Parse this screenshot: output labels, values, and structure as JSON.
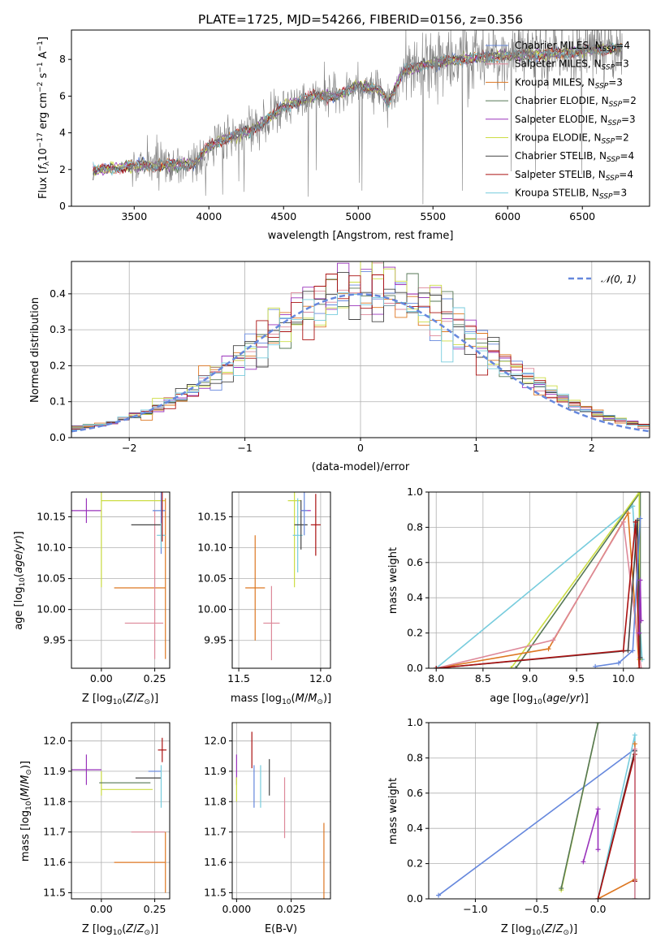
{
  "chart_data": [
    {
      "id": "spectrum",
      "type": "line",
      "title": "PLATE=1725, MJD=54266, FIBERID=0156, z=0.356",
      "xlabel": "wavelength [Angstrom, rest frame]",
      "ylabel": "Flux [f_λ10^-17 erg cm^-2 s^-1 A^-1]",
      "xlim": [
        3080,
        6950
      ],
      "ylim": [
        0,
        9.6
      ],
      "xticks": [
        3500,
        4000,
        4500,
        5000,
        5500,
        6000,
        6500
      ],
      "yticks": [
        0,
        2,
        4,
        6,
        8
      ],
      "legend_position": "upper-right",
      "legend": [
        {
          "name": "Chabrier MILES, N_SSP=4",
          "color": "#6688dd"
        },
        {
          "name": "Salpeter MILES, N_SSP=3",
          "color": "#dd8899"
        },
        {
          "name": "Kroupa MILES, N_SSP=3",
          "color": "#dd7722"
        },
        {
          "name": "Chabrier ELODIE, N_SSP=2",
          "color": "#557755"
        },
        {
          "name": "Salpeter ELODIE, N_SSP=3",
          "color": "#9933bb"
        },
        {
          "name": "Kroupa ELODIE, N_SSP=2",
          "color": "#ccdd44"
        },
        {
          "name": "Chabrier STELIB, N_SSP=4",
          "color": "#444444"
        },
        {
          "name": "Salpeter STELIB, N_SSP=4",
          "color": "#aa1111"
        },
        {
          "name": "Kroupa STELIB, N_SSP=3",
          "color": "#77ccdd"
        }
      ],
      "data_color": "#808080",
      "continuum_anchors": [
        [
          3200,
          1.9
        ],
        [
          3500,
          2.2
        ],
        [
          3900,
          2.3
        ],
        [
          4000,
          3.3
        ],
        [
          4150,
          3.8
        ],
        [
          4300,
          4.2
        ],
        [
          4500,
          5.4
        ],
        [
          4700,
          6.0
        ],
        [
          4850,
          6.0
        ],
        [
          5000,
          6.6
        ],
        [
          5150,
          6.3
        ],
        [
          5200,
          5.6
        ],
        [
          5300,
          7.4
        ],
        [
          5500,
          7.8
        ],
        [
          5800,
          8.1
        ],
        [
          6000,
          8.2
        ],
        [
          6300,
          8.3
        ],
        [
          6700,
          8.6
        ]
      ]
    },
    {
      "id": "residuals",
      "type": "histogram",
      "xlabel": "(data-model)/error",
      "ylabel": "Normed distribution",
      "xlim": [
        -2.5,
        2.5
      ],
      "ylim": [
        0,
        0.49
      ],
      "xticks": [
        -2,
        -1,
        0,
        1,
        2
      ],
      "yticks": [
        0.0,
        0.1,
        0.2,
        0.3,
        0.4
      ],
      "grid": true,
      "legend": [
        {
          "name": "N(0, 1)",
          "style": "dashed",
          "color": "#6688dd"
        }
      ],
      "series_colors": [
        "#6688dd",
        "#dd8899",
        "#dd7722",
        "#557755",
        "#9933bb",
        "#ccdd44",
        "#444444",
        "#aa1111",
        "#77ccdd"
      ],
      "bin_width": 0.1
    },
    {
      "id": "age_vs_Z",
      "type": "scatter",
      "xlabel": "Z [log10(Z/Z☉)]",
      "ylabel": "age  [log10(age/yr)]",
      "xlim": [
        -0.14,
        0.32
      ],
      "ylim": [
        9.905,
        10.19
      ],
      "xticks": [
        0.0,
        0.25
      ],
      "yticks": [
        9.95,
        10.0,
        10.05,
        10.1,
        10.15
      ],
      "grid": true,
      "points": [
        {
          "x": -0.07,
          "y": 10.16,
          "xerr": 0.07,
          "yerr": 0.02,
          "color": "#9933bb"
        },
        {
          "x": 0.0,
          "y": 10.176,
          "xerr": 0.0,
          "yerr": 0.14,
          "color": "#ccdd44"
        },
        {
          "x": 0.15,
          "y": 10.176,
          "xerr": 0.15,
          "yerr": 0.0,
          "color": "#ccdd44"
        },
        {
          "x": 0.18,
          "y": 10.035,
          "xerr": 0.12,
          "yerr": 0.0,
          "color": "#dd7722"
        },
        {
          "x": 0.3,
          "y": 10.05,
          "xerr": 0.0,
          "yerr": 0.13,
          "color": "#dd7722"
        },
        {
          "x": 0.2,
          "y": 9.978,
          "xerr": 0.09,
          "yerr": 0.0,
          "color": "#dd8899"
        },
        {
          "x": 0.25,
          "y": 10.04,
          "xerr": 0.0,
          "yerr": 0.12,
          "color": "#dd8899"
        },
        {
          "x": 0.21,
          "y": 10.137,
          "xerr": 0.07,
          "yerr": 0.0,
          "color": "#444444"
        },
        {
          "x": 0.27,
          "y": 10.16,
          "xerr": 0.03,
          "yerr": 0.0,
          "color": "#6688dd"
        },
        {
          "x": 0.28,
          "y": 10.14,
          "xerr": 0.0,
          "yerr": 0.05,
          "color": "#6688dd"
        },
        {
          "x": 0.28,
          "y": 10.12,
          "xerr": 0.02,
          "yerr": 0.02,
          "color": "#77ccdd"
        },
        {
          "x": 0.285,
          "y": 10.15,
          "xerr": 0.0,
          "yerr": 0.04,
          "color": "#aa1111"
        }
      ]
    },
    {
      "id": "age_vs_mass",
      "type": "scatter",
      "xlabel": "mass [log10(M/M☉)]",
      "ylabel": "",
      "xlim": [
        11.46,
        12.06
      ],
      "ylim": [
        9.905,
        10.19
      ],
      "xticks": [
        11.5,
        12.0
      ],
      "yticks": [
        9.95,
        10.0,
        10.05,
        10.1,
        10.15
      ],
      "grid": true,
      "points": [
        {
          "x": 11.6,
          "y": 10.035,
          "xerr": 0.06,
          "yerr": 0.085,
          "color": "#dd7722"
        },
        {
          "x": 11.7,
          "y": 9.978,
          "xerr": 0.05,
          "yerr": 0.06,
          "color": "#dd8899"
        },
        {
          "x": 11.84,
          "y": 10.176,
          "xerr": 0.04,
          "yerr": 0.14,
          "color": "#ccdd44"
        },
        {
          "x": 11.86,
          "y": 10.12,
          "xerr": 0.03,
          "yerr": 0.06,
          "color": "#77ccdd"
        },
        {
          "x": 11.88,
          "y": 10.137,
          "xerr": 0.04,
          "yerr": 0.04,
          "color": "#444444"
        },
        {
          "x": 11.91,
          "y": 10.16,
          "xerr": 0.03,
          "yerr": 0.0,
          "color": "#9933bb"
        },
        {
          "x": 11.9,
          "y": 10.16,
          "xerr": 0.02,
          "yerr": 0.04,
          "color": "#6688dd"
        },
        {
          "x": 11.97,
          "y": 10.137,
          "xerr": 0.03,
          "yerr": 0.05,
          "color": "#aa1111"
        }
      ]
    },
    {
      "id": "cumulative_age",
      "type": "line",
      "xlabel": "age  [log10(age/yr)]",
      "ylabel": "mass weight",
      "xlim": [
        7.92,
        10.28
      ],
      "ylim": [
        0,
        1.0
      ],
      "xticks": [
        8.0,
        8.5,
        9.0,
        9.5,
        10.0
      ],
      "yticks": [
        0.0,
        0.2,
        0.4,
        0.6,
        0.8,
        1.0
      ],
      "grid": true,
      "series": [
        {
          "color": "#77ccdd",
          "points": [
            [
              8.0,
              0.0
            ],
            [
              10.1,
              0.92
            ],
            [
              10.2,
              0.05
            ]
          ]
        },
        {
          "color": "#557755",
          "points": [
            [
              8.85,
              0.0
            ],
            [
              10.18,
              1.0
            ],
            [
              10.18,
              0.05
            ]
          ]
        },
        {
          "color": "#ccdd44",
          "points": [
            [
              8.8,
              0.0
            ],
            [
              10.17,
              1.0
            ],
            [
              10.17,
              0.05
            ]
          ]
        },
        {
          "color": "#dd7722",
          "points": [
            [
              8.0,
              0.0
            ],
            [
              9.2,
              0.11
            ],
            [
              10.05,
              0.88
            ],
            [
              10.17,
              0.0
            ]
          ]
        },
        {
          "color": "#dd8899",
          "points": [
            [
              8.0,
              0.0
            ],
            [
              9.25,
              0.16
            ],
            [
              10.0,
              0.83
            ],
            [
              10.19,
              0.0
            ]
          ]
        },
        {
          "color": "#444444",
          "points": [
            [
              8.0,
              0.0
            ],
            [
              10.05,
              0.1
            ],
            [
              10.15,
              0.84
            ],
            [
              10.18,
              0.06
            ]
          ]
        },
        {
          "color": "#aa1111",
          "points": [
            [
              8.0,
              0.0
            ],
            [
              10.0,
              0.1
            ],
            [
              10.13,
              0.83
            ],
            [
              10.17,
              0.0
            ]
          ]
        },
        {
          "color": "#6688dd",
          "points": [
            [
              9.7,
              0.01
            ],
            [
              9.95,
              0.03
            ],
            [
              10.1,
              0.1
            ],
            [
              10.18,
              0.85
            ]
          ]
        },
        {
          "color": "#9933bb",
          "points": [
            [
              10.17,
              0.2
            ],
            [
              10.18,
              0.5
            ],
            [
              10.19,
              0.27
            ]
          ]
        }
      ]
    },
    {
      "id": "mass_vs_Z",
      "type": "scatter",
      "xlabel": "Z [log10(Z/Z☉)]",
      "ylabel": "mass [log10(M/M☉)]",
      "xlim": [
        -0.14,
        0.32
      ],
      "ylim": [
        11.48,
        12.06
      ],
      "xticks": [
        0.0,
        0.25
      ],
      "yticks": [
        11.5,
        11.6,
        11.7,
        11.8,
        11.9,
        12.0
      ],
      "grid": true,
      "points": [
        {
          "x": -0.07,
          "y": 11.905,
          "xerr": 0.07,
          "yerr": 0.05,
          "color": "#9933bb"
        },
        {
          "x": 0.0,
          "y": 11.86,
          "xerr": 0.0,
          "yerr": 0.04,
          "color": "#ccdd44"
        },
        {
          "x": 0.11,
          "y": 11.862,
          "xerr": 0.12,
          "yerr": 0.0,
          "color": "#557755"
        },
        {
          "x": 0.12,
          "y": 11.84,
          "xerr": 0.12,
          "yerr": 0.0,
          "color": "#ccdd44"
        },
        {
          "x": 0.22,
          "y": 11.878,
          "xerr": 0.06,
          "yerr": 0.0,
          "color": "#444444"
        },
        {
          "x": 0.25,
          "y": 11.9,
          "xerr": 0.03,
          "yerr": 0.0,
          "color": "#6688dd"
        },
        {
          "x": 0.28,
          "y": 11.85,
          "xerr": 0.0,
          "yerr": 0.07,
          "color": "#77ccdd"
        },
        {
          "x": 0.285,
          "y": 11.97,
          "xerr": 0.02,
          "yerr": 0.04,
          "color": "#aa1111"
        },
        {
          "x": 0.22,
          "y": 11.7,
          "xerr": 0.08,
          "yerr": 0.0,
          "color": "#dd8899"
        },
        {
          "x": 0.18,
          "y": 11.6,
          "xerr": 0.12,
          "yerr": 0.0,
          "color": "#dd7722"
        },
        {
          "x": 0.3,
          "y": 11.6,
          "xerr": 0.0,
          "yerr": 0.1,
          "color": "#dd7722"
        }
      ]
    },
    {
      "id": "mass_vs_EBV",
      "type": "scatter",
      "xlabel": "E(B-V)",
      "ylabel": "",
      "xlim": [
        -0.002,
        0.043
      ],
      "ylim": [
        11.48,
        12.06
      ],
      "xticks": [
        0.0,
        0.025
      ],
      "yticks": [
        11.5,
        11.6,
        11.7,
        11.8,
        11.9,
        12.0
      ],
      "grid": true,
      "points": [
        {
          "x": 0.0,
          "y": 11.905,
          "xerr": 0.0,
          "yerr": 0.05,
          "color": "#9933bb"
        },
        {
          "x": 0.0,
          "y": 11.84,
          "xerr": 0.0,
          "yerr": 0.04,
          "color": "#ccdd44"
        },
        {
          "x": 0.007,
          "y": 11.97,
          "xerr": 0.0,
          "yerr": 0.06,
          "color": "#aa1111"
        },
        {
          "x": 0.008,
          "y": 11.85,
          "xerr": 0.0,
          "yerr": 0.07,
          "color": "#6688dd"
        },
        {
          "x": 0.011,
          "y": 11.85,
          "xerr": 0.0,
          "yerr": 0.07,
          "color": "#77ccdd"
        },
        {
          "x": 0.015,
          "y": 11.88,
          "xerr": 0.0,
          "yerr": 0.06,
          "color": "#444444"
        },
        {
          "x": 0.022,
          "y": 11.78,
          "xerr": 0.0,
          "yerr": 0.1,
          "color": "#dd8899"
        },
        {
          "x": 0.04,
          "y": 11.6,
          "xerr": 0.0,
          "yerr": 0.13,
          "color": "#dd7722"
        }
      ]
    },
    {
      "id": "cumulative_Z",
      "type": "line",
      "xlabel": "Z [log10(Z/Z☉)]",
      "ylabel": "mass weight",
      "xlim": [
        -1.38,
        0.42
      ],
      "ylim": [
        0,
        1.0
      ],
      "xticks": [
        -1.0,
        -0.5,
        0.0
      ],
      "yticks": [
        0.0,
        0.2,
        0.4,
        0.6,
        0.8,
        1.0
      ],
      "grid": true,
      "series": [
        {
          "color": "#6688dd",
          "points": [
            [
              -1.3,
              0.02
            ],
            [
              0.3,
              0.85
            ]
          ]
        },
        {
          "color": "#ccdd44",
          "points": [
            [
              -0.3,
              0.05
            ],
            [
              0.0,
              1.0
            ]
          ]
        },
        {
          "color": "#557755",
          "points": [
            [
              -0.3,
              0.06
            ],
            [
              0.0,
              1.0
            ]
          ]
        },
        {
          "color": "#9933bb",
          "points": [
            [
              -0.12,
              0.21
            ],
            [
              0.0,
              0.51
            ],
            [
              0.0,
              0.28
            ]
          ]
        },
        {
          "color": "#77ccdd",
          "points": [
            [
              0.0,
              0.0
            ],
            [
              0.3,
              0.93
            ],
            [
              0.3,
              0.0
            ]
          ]
        },
        {
          "color": "#dd7722",
          "points": [
            [
              0.0,
              0.0
            ],
            [
              0.3,
              0.11
            ],
            [
              0.3,
              0.88
            ]
          ]
        },
        {
          "color": "#444444",
          "points": [
            [
              0.0,
              0.0
            ],
            [
              0.3,
              0.84
            ],
            [
              0.3,
              0.1
            ]
          ]
        },
        {
          "color": "#aa1111",
          "points": [
            [
              0.0,
              0.0
            ],
            [
              0.3,
              0.82
            ],
            [
              0.3,
              0.1
            ]
          ]
        },
        {
          "color": "#dd8899",
          "points": [
            [
              0.3,
              0.0
            ],
            [
              0.3,
              0.85
            ]
          ]
        }
      ]
    }
  ]
}
